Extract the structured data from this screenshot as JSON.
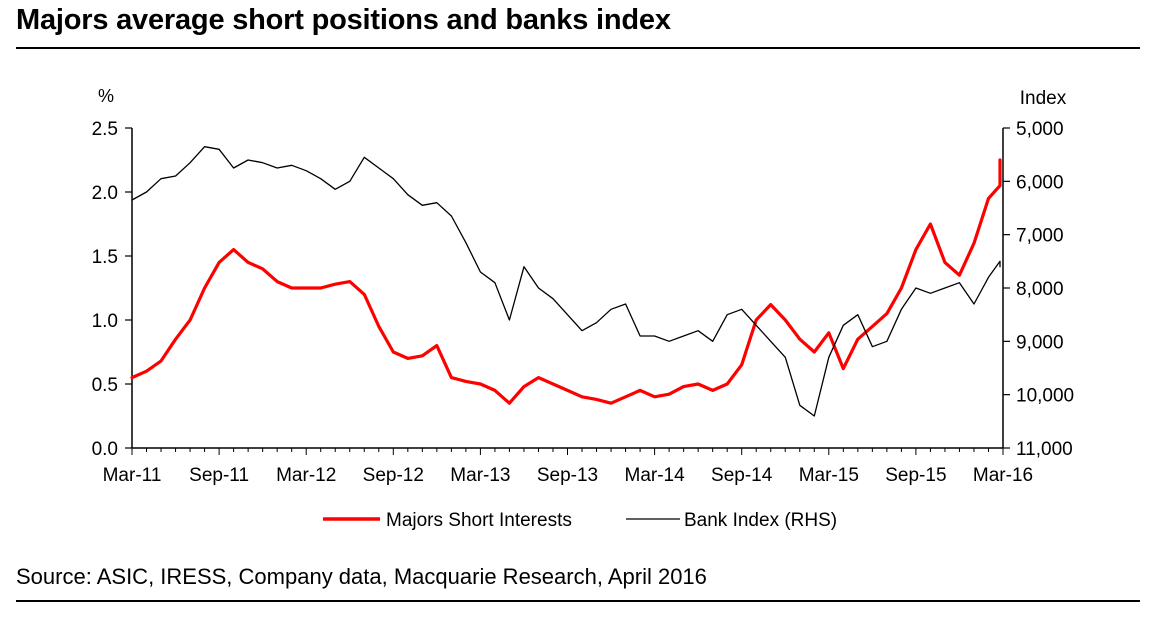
{
  "header": {
    "title": "Majors average short positions and banks index"
  },
  "footer": {
    "source": "Source: ASIC, IRESS, Company data, Macquarie Research, April 2016"
  },
  "chart_data": {
    "type": "line",
    "y_left_label": "%",
    "y_right_label": "Index",
    "ylim_left": [
      0,
      2.5
    ],
    "ylim_right_inverted": [
      11000,
      5000
    ],
    "y_left_ticks": [
      "0.0",
      "0.5",
      "1.0",
      "1.5",
      "2.0",
      "2.5"
    ],
    "y_right_ticks": [
      "11,000",
      "10,000",
      "9,000",
      "8,000",
      "7,000",
      "6,000",
      "5,000"
    ],
    "x_tick_labels": [
      "Mar-11",
      "Sep-11",
      "Mar-12",
      "Sep-12",
      "Mar-13",
      "Sep-13",
      "Mar-14",
      "Sep-14",
      "Mar-15",
      "Sep-15",
      "Mar-16"
    ],
    "grid": false,
    "legend_position": "bottom",
    "series": [
      {
        "name": "Majors Short Interests",
        "axis": "left",
        "color": "#ff0000",
        "x": [
          "Mar-11",
          "Apr-11",
          "May-11",
          "Jun-11",
          "Jul-11",
          "Aug-11",
          "Sep-11",
          "Oct-11",
          "Nov-11",
          "Dec-11",
          "Jan-12",
          "Feb-12",
          "Mar-12",
          "Apr-12",
          "May-12",
          "Jun-12",
          "Jul-12",
          "Aug-12",
          "Sep-12",
          "Oct-12",
          "Nov-12",
          "Dec-12",
          "Jan-13",
          "Feb-13",
          "Mar-13",
          "Apr-13",
          "May-13",
          "Jun-13",
          "Jul-13",
          "Aug-13",
          "Sep-13",
          "Oct-13",
          "Nov-13",
          "Dec-13",
          "Jan-14",
          "Feb-14",
          "Mar-14",
          "Apr-14",
          "May-14",
          "Jun-14",
          "Jul-14",
          "Aug-14",
          "Sep-14",
          "Oct-14",
          "Nov-14",
          "Dec-14",
          "Jan-15",
          "Feb-15",
          "Mar-15",
          "Apr-15",
          "May-15",
          "Jun-15",
          "Jul-15",
          "Aug-15",
          "Sep-15",
          "Oct-15",
          "Nov-15",
          "Dec-15",
          "Jan-16",
          "Feb-16",
          "Mar-16",
          "Apr-16"
        ],
        "values": [
          0.55,
          0.6,
          0.68,
          0.85,
          1.0,
          1.25,
          1.45,
          1.55,
          1.45,
          1.4,
          1.3,
          1.25,
          1.25,
          1.25,
          1.28,
          1.3,
          1.2,
          0.95,
          0.75,
          0.7,
          0.72,
          0.8,
          0.55,
          0.52,
          0.5,
          0.45,
          0.35,
          0.48,
          0.55,
          0.5,
          0.45,
          0.4,
          0.38,
          0.35,
          0.4,
          0.45,
          0.4,
          0.42,
          0.48,
          0.5,
          0.45,
          0.5,
          0.65,
          1.0,
          1.12,
          1.0,
          0.85,
          0.75,
          0.9,
          0.62,
          0.85,
          0.95,
          1.05,
          1.25,
          1.55,
          1.75,
          1.45,
          1.35,
          1.6,
          1.95,
          2.05,
          2.25
        ]
      },
      {
        "name": "Bank Index (RHS)",
        "axis": "right",
        "color": "#000000",
        "x": [
          "Mar-11",
          "Apr-11",
          "May-11",
          "Jun-11",
          "Jul-11",
          "Aug-11",
          "Sep-11",
          "Oct-11",
          "Nov-11",
          "Dec-11",
          "Jan-12",
          "Feb-12",
          "Mar-12",
          "Apr-12",
          "May-12",
          "Jun-12",
          "Jul-12",
          "Aug-12",
          "Sep-12",
          "Oct-12",
          "Nov-12",
          "Dec-12",
          "Jan-13",
          "Feb-13",
          "Mar-13",
          "Apr-13",
          "May-13",
          "Jun-13",
          "Jul-13",
          "Aug-13",
          "Sep-13",
          "Oct-13",
          "Nov-13",
          "Dec-13",
          "Jan-14",
          "Feb-14",
          "Mar-14",
          "Apr-14",
          "May-14",
          "Jun-14",
          "Jul-14",
          "Aug-14",
          "Sep-14",
          "Oct-14",
          "Nov-14",
          "Dec-14",
          "Jan-15",
          "Feb-15",
          "Mar-15",
          "Apr-15",
          "May-15",
          "Jun-15",
          "Jul-15",
          "Aug-15",
          "Sep-15",
          "Oct-15",
          "Nov-15",
          "Dec-15",
          "Jan-16",
          "Feb-16",
          "Mar-16",
          "Apr-16"
        ],
        "values": [
          6350,
          6200,
          5950,
          5900,
          5650,
          5350,
          5400,
          5750,
          5600,
          5650,
          5750,
          5700,
          5800,
          5950,
          6150,
          6000,
          5550,
          5750,
          5950,
          6250,
          6450,
          6400,
          6650,
          7150,
          7700,
          7900,
          8600,
          7600,
          8000,
          8200,
          8500,
          8800,
          8650,
          8400,
          8300,
          8900,
          8900,
          9000,
          8900,
          8800,
          9000,
          8500,
          8400,
          8700,
          9000,
          9300,
          10200,
          10400,
          9300,
          8700,
          8500,
          9100,
          9000,
          8400,
          8000,
          8100,
          8000,
          7900,
          8300,
          7800,
          7500,
          7600
        ]
      }
    ]
  }
}
